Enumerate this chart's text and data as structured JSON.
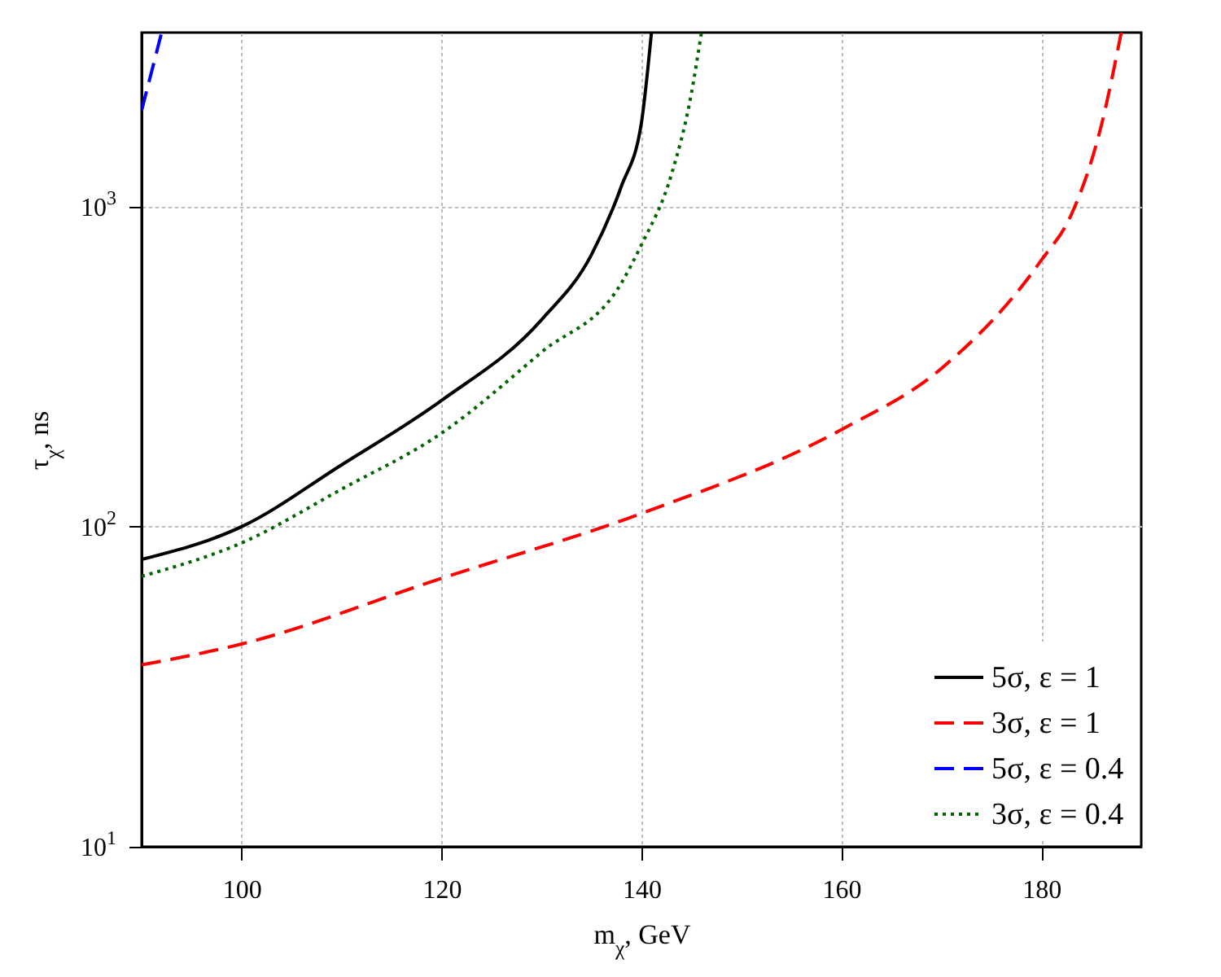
{
  "chart_data": {
    "type": "line",
    "xlabel": "m$_{χ}$, GeV",
    "ylabel": "τ$_{χ}$, ns",
    "log": "y",
    "grid": true,
    "legend": "bottom right",
    "xlim": [
      90,
      190
    ],
    "xticks": [
      100,
      120,
      140,
      160,
      180
    ],
    "ylim": [
      10,
      3500
    ],
    "yticks": [
      {
        "value": 10,
        "label": "10$^{1}$"
      },
      {
        "value": 100,
        "label": "10$^{2}$"
      },
      {
        "value": 1000,
        "label": "10$^{3}$"
      }
    ],
    "series": [
      {
        "name": "5σ, ε = 1",
        "color": "#000000",
        "line_style": "solid",
        "x": [
          90,
          100,
          110,
          120,
          130,
          135,
          138,
          140,
          141
        ],
        "values": [
          79,
          100,
          156,
          248,
          443,
          708,
          1160,
          1830,
          3500
        ]
      },
      {
        "name": "3σ, ε = 1",
        "color": "#ff0000",
        "line_style": "dashed",
        "x": [
          90,
          100,
          120,
          140,
          160,
          170,
          180,
          183,
          186,
          188
        ],
        "values": [
          37,
          43,
          69,
          110,
          201,
          312,
          680,
          944,
          1790,
          3500
        ]
      },
      {
        "name": "5σ, ε = 0.4",
        "color": "#0000ff",
        "line_style": "dashed",
        "x": [
          90,
          92
        ],
        "values": [
          2000,
          3500
        ]
      },
      {
        "name": "3σ, ε = 0.4",
        "color": "#006400",
        "line_style": "dotted",
        "x": [
          90,
          100,
          110,
          120,
          130,
          138,
          140,
          143,
          145,
          146
        ],
        "values": [
          70,
          89,
          131,
          196,
          351,
          578,
          760,
          1260,
          2260,
          3500
        ]
      }
    ]
  }
}
